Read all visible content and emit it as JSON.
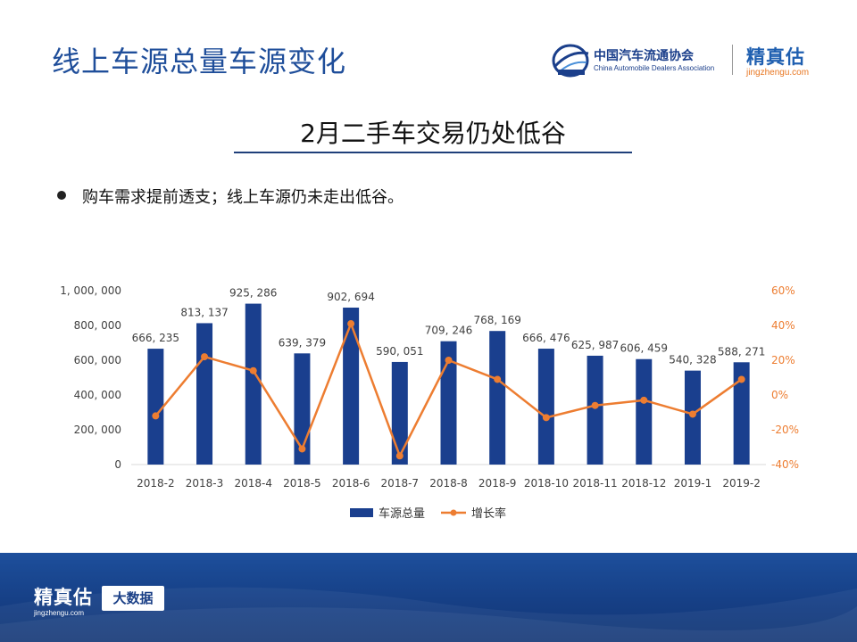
{
  "page": {
    "title": "线上车源总量车源变化",
    "subtitle": "2月二手车交易仍处低谷",
    "bullet": "购车需求提前透支；线上车源仍未走出低谷。"
  },
  "logos": {
    "cada_cn": "中国汽车流通协会",
    "cada_en": "China Automobile Dealers Association",
    "jzg_name": "精真估",
    "jzg_url": "jingzhengu.com"
  },
  "footer": {
    "brand_name": "精真估",
    "brand_url": "jingzhengu.com",
    "badge": "大数据"
  },
  "colors": {
    "title": "#1f4e9a",
    "bar": "#1a3f8e",
    "line": "#ed7d31",
    "footer": "#163f85"
  },
  "chart_data": {
    "type": "bar",
    "categories": [
      "2018-2",
      "2018-3",
      "2018-4",
      "2018-5",
      "2018-6",
      "2018-7",
      "2018-8",
      "2018-9",
      "2018-10",
      "2018-11",
      "2018-12",
      "2019-1",
      "2019-2"
    ],
    "series": [
      {
        "name": "车源总量",
        "type": "bar",
        "axis": "left",
        "values": [
          666235,
          813137,
          925286,
          639379,
          902694,
          590051,
          709246,
          768169,
          666476,
          625987,
          606459,
          540328,
          588271
        ],
        "labels": [
          "666, 235",
          "813, 137",
          "925, 286",
          "639, 379",
          "902, 694",
          "590, 051",
          "709, 246",
          "768, 169",
          "666, 476",
          "625, 987",
          "606, 459",
          "540, 328",
          "588, 271"
        ],
        "color": "#1a3f8e"
      },
      {
        "name": "增长率",
        "type": "line",
        "axis": "right",
        "values": [
          -12,
          22,
          14,
          -31,
          41,
          -35,
          20,
          9,
          -13,
          -6,
          -3,
          -11,
          9
        ],
        "color": "#ed7d31"
      }
    ],
    "y_left": {
      "min": 0,
      "max": 1000000,
      "ticks": [
        0,
        200000,
        400000,
        600000,
        800000,
        1000000
      ],
      "tick_labels": [
        "0",
        "200, 000",
        "400, 000",
        "600, 000",
        "800, 000",
        "1, 000, 000"
      ]
    },
    "y_right": {
      "min": -40,
      "max": 60,
      "ticks": [
        -40,
        -20,
        0,
        20,
        40,
        60
      ],
      "tick_labels": [
        "-40%",
        "-20%",
        "0%",
        "20%",
        "40%",
        "60%"
      ]
    },
    "legend_position": "bottom",
    "grid": false
  }
}
